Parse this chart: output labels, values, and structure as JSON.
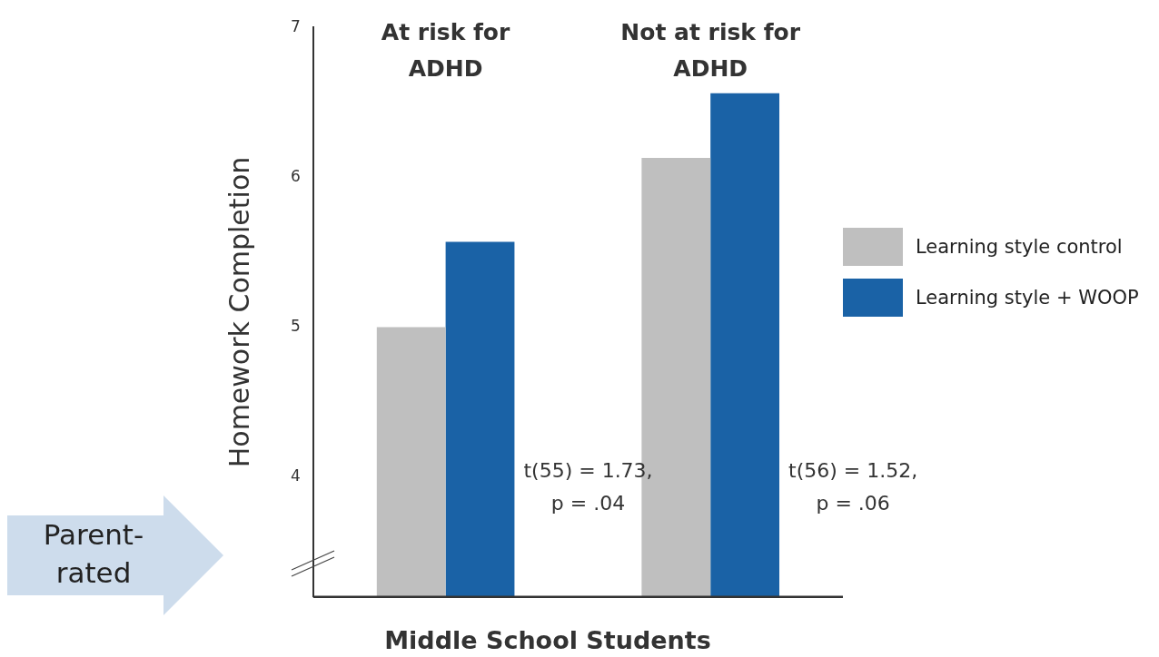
{
  "chart_data": {
    "type": "bar",
    "ylabel": "Homework Completion",
    "xlabel": "Middle School Students",
    "categories": [
      "At risk for ADHD",
      "Not at risk for ADHD"
    ],
    "series": [
      {
        "name": "Learning style control",
        "color": "#bfbfbf",
        "values": [
          5.0,
          6.13
        ]
      },
      {
        "name": "Learning style + WOOP",
        "color": "#1a62a6",
        "values": [
          5.57,
          6.56
        ]
      }
    ],
    "ylim": [
      3.2,
      7
    ],
    "yticks": [
      4,
      5,
      6,
      7
    ],
    "grid": false,
    "legend": "right",
    "annotations": [
      "t(55) = 1.73, p = .04",
      "t(56) = 1.52, p = .06",
      "Parent-rated"
    ]
  }
}
